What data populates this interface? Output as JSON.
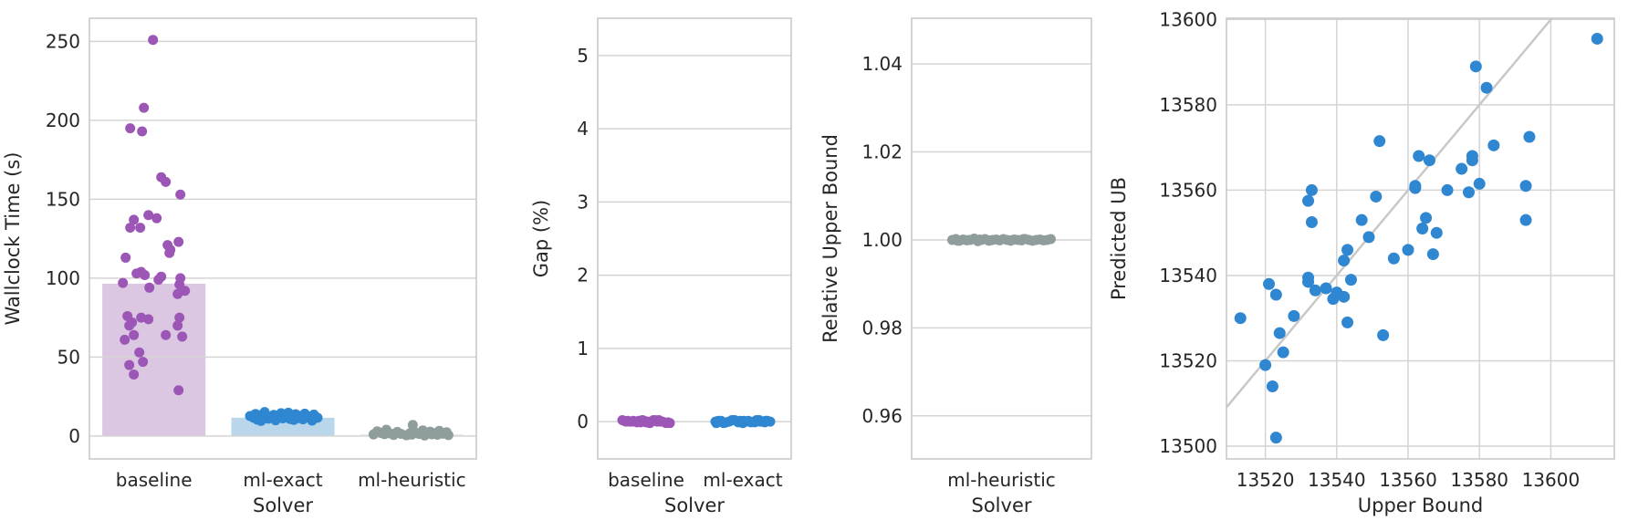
{
  "colors": {
    "purple_dot": "#9c57b6",
    "blue_dot": "#2f86d1",
    "gray_dot": "#8f9e9c",
    "purple_bar": "#dcc7e2",
    "blue_bar": "#b9d6eb",
    "gray_bar": "#e9ecec",
    "gridline": "#d4d4d4",
    "spine": "#c9c9c9",
    "identity_line": "#c8c8c8",
    "text": "#262626",
    "background": "#ffffff"
  },
  "chart_data": [
    {
      "id": "wallclock",
      "type": "bar+strip",
      "title": "",
      "xlabel": "Solver",
      "ylabel": "Wallclock Time (s)",
      "categories": [
        "baseline",
        "ml-exact",
        "ml-heuristic"
      ],
      "bar_values": [
        96.5,
        11.6,
        1.2
      ],
      "bar_colors": [
        "#dcc7e2",
        "#b9d6eb",
        "#e9ecec"
      ],
      "dot_colors": [
        "#9c57b6",
        "#2f86d1",
        "#8f9e9c"
      ],
      "yticks": [
        0,
        50,
        100,
        150,
        200,
        250
      ],
      "ytick_labels": [
        "0",
        "50",
        "100",
        "150",
        "200",
        "250"
      ],
      "ylim": [
        -14.5,
        264.7
      ],
      "grid": "horizontal",
      "series": [
        {
          "category": "baseline",
          "values": [
            251,
            208,
            195,
            193,
            164,
            161,
            153,
            140,
            138,
            137,
            132,
            132,
            123,
            121,
            118,
            116,
            113,
            104,
            103,
            102,
            101,
            100,
            99,
            97,
            96,
            94,
            92,
            90,
            76,
            75,
            75,
            74,
            72,
            70,
            70,
            64,
            64,
            63,
            61,
            53,
            47,
            45,
            39,
            29
          ],
          "jitter": [
            -1,
            -11,
            -26,
            -13,
            8,
            13,
            29,
            -6,
            3,
            -22,
            -26,
            -15,
            27,
            15,
            18,
            17,
            -31,
            -14,
            -19,
            -10,
            8,
            29,
            5,
            -34,
            28,
            -5,
            34,
            26,
            -29,
            -14,
            28,
            -6,
            -24,
            -27,
            26,
            13,
            -22,
            31,
            -32,
            -16,
            -12,
            -27,
            -22,
            27
          ]
        },
        {
          "category": "ml-exact",
          "values": [
            15.2,
            14.8,
            14.5,
            14.2,
            14.0,
            13.8,
            13.6,
            13.4,
            13.2,
            13.0,
            12.8,
            12.7,
            12.5,
            12.4,
            12.2,
            12.0,
            11.9,
            11.8,
            11.6,
            11.5,
            11.3,
            11.2,
            11.0,
            10.8,
            10.6,
            10.4,
            10.2,
            10.0,
            9.8,
            9.6,
            13.9,
            12.1
          ],
          "jitter": [
            -20,
            6,
            -2,
            24,
            -30,
            14,
            34,
            -10,
            2,
            -26,
            20,
            -36,
            10,
            30,
            -14,
            -6,
            26,
            -22,
            38,
            -32,
            16,
            0,
            -16,
            8,
            22,
            -28,
            12,
            -8,
            32,
            -24,
            4,
            18
          ]
        },
        {
          "category": "ml-heuristic",
          "values": [
            7.0,
            4.0,
            3.6,
            3.3,
            3.0,
            2.8,
            2.6,
            2.4,
            2.2,
            2.0,
            1.9,
            1.8,
            1.7,
            1.6,
            1.5,
            1.4,
            1.3,
            1.2,
            1.1,
            1.0,
            0.9,
            0.8,
            0.7,
            0.6,
            0.5,
            0.3
          ],
          "jitter": [
            1,
            -28,
            12,
            30,
            -38,
            20,
            -16,
            38,
            4,
            -34,
            26,
            -2,
            -24,
            16,
            34,
            -12,
            8,
            -30,
            22,
            -42,
            0,
            28,
            -20,
            40,
            -6,
            14
          ]
        }
      ]
    },
    {
      "id": "gap",
      "type": "strip",
      "title": "",
      "xlabel": "Solver",
      "ylabel": "Gap (%)",
      "categories": [
        "baseline",
        "ml-exact"
      ],
      "dot_colors": [
        "#9c57b6",
        "#2f86d1"
      ],
      "yticks": [
        0,
        1,
        2,
        3,
        4,
        5
      ],
      "ytick_labels": [
        "0",
        "1",
        "2",
        "3",
        "4",
        "5"
      ],
      "ylim": [
        -0.51,
        5.51
      ],
      "grid": "horizontal",
      "series": [
        {
          "category": "baseline",
          "values": [
            0.02,
            0.0,
            -0.01,
            0.01,
            0.0,
            0.02,
            -0.02,
            0.0,
            0.01,
            -0.01,
            0.0,
            0.02,
            0.0,
            -0.02,
            0.01,
            0.0,
            0.01,
            -0.01,
            0.02,
            0.0,
            -0.01,
            0.01,
            0.0,
            0.02,
            -0.02,
            0.0
          ],
          "jitter": [
            -26,
            -18,
            -10,
            -2,
            6,
            14,
            22,
            -22,
            -14,
            -6,
            2,
            10,
            18,
            26,
            -24,
            -16,
            -8,
            0,
            8,
            16,
            24,
            -20,
            -12,
            -4,
            4,
            12
          ]
        },
        {
          "category": "ml-exact",
          "values": [
            0.0,
            0.01,
            -0.01,
            0.02,
            0.0,
            -0.02,
            0.01,
            0.0,
            0.02,
            -0.01,
            0.0,
            0.01,
            -0.02,
            0.0,
            0.02,
            0.01,
            0.0,
            -0.01,
            0.02,
            0.0,
            0.01,
            -0.02,
            0.0,
            0.02,
            -0.01,
            0.01,
            0.0,
            -0.01,
            0.0,
            0.01
          ],
          "jitter": [
            -30,
            -24,
            -18,
            -12,
            -6,
            0,
            6,
            12,
            18,
            24,
            30,
            -27,
            -21,
            -15,
            -9,
            -3,
            3,
            9,
            15,
            21,
            27,
            -29,
            -23,
            -11,
            -5,
            1,
            7,
            13,
            19,
            25
          ]
        }
      ]
    },
    {
      "id": "relative-upper-bound",
      "type": "strip",
      "title": "",
      "xlabel": "Solver",
      "ylabel": "Relative Upper Bound",
      "categories": [
        "ml-heuristic"
      ],
      "dot_colors": [
        "#8f9e9c"
      ],
      "yticks": [
        0.96,
        0.98,
        1.0,
        1.02,
        1.04
      ],
      "ytick_labels": [
        "0.96",
        "0.98",
        "1.00",
        "1.02",
        "1.04"
      ],
      "ylim": [
        0.9502,
        1.0504
      ],
      "grid": "horizontal",
      "series": [
        {
          "category": "ml-heuristic",
          "values": [
            1.0,
            1.0002,
            0.9998,
            1.0001,
            0.9999,
            1.0,
            1.0003,
            0.9997,
            1.0,
            1.0002,
            0.9998,
            1.0,
            1.0001,
            0.9999,
            1.0002,
            1.0,
            0.9998,
            1.0001,
            1.0,
            0.9999,
            1.0002,
            1.0,
            0.9998,
            1.0,
            1.0001,
            0.9999,
            1.0,
            1.0002,
            0.9998,
            1.0,
            1.0001,
            0.9999,
            1.0,
            1.0002
          ],
          "jitter": [
            -54,
            -50,
            -46,
            -42,
            -38,
            -34,
            -30,
            -26,
            -22,
            -18,
            -14,
            -10,
            -6,
            -2,
            2,
            6,
            10,
            14,
            18,
            22,
            26,
            30,
            34,
            38,
            42,
            46,
            50,
            54,
            -48,
            -36,
            -24,
            -12,
            12,
            24
          ]
        }
      ]
    },
    {
      "id": "predicted-vs-upper-bound",
      "type": "scatter",
      "title": "",
      "xlabel": "Upper Bound",
      "ylabel": "Predicted UB",
      "dot_color": "#2f86d1",
      "identity_line": true,
      "identity_line_color": "#c8c8c8",
      "xticks": [
        13520,
        13540,
        13560,
        13580,
        13600
      ],
      "xtick_labels": [
        "13520",
        "13540",
        "13560",
        "13580",
        "13600"
      ],
      "yticks": [
        13500,
        13520,
        13540,
        13560,
        13580,
        13600
      ],
      "ytick_labels": [
        "13500",
        "13520",
        "13540",
        "13560",
        "13580",
        "13600"
      ],
      "xlim": [
        13509.1,
        13617.8
      ],
      "ylim": [
        13497.0,
        13600.3
      ],
      "grid": "both",
      "x": [
        13513,
        13520,
        13521,
        13522,
        13523,
        13523,
        13524,
        13525,
        13528,
        13532,
        13532,
        13532,
        13533,
        13533,
        13534,
        13537,
        13539,
        13540,
        13542,
        13542,
        13543,
        13543,
        13544,
        13547,
        13549,
        13551,
        13552,
        13553,
        13556,
        13560,
        13562,
        13562,
        13563,
        13564,
        13565,
        13566,
        13567,
        13568,
        13571,
        13575,
        13577,
        13578,
        13578,
        13579,
        13580,
        13582,
        13584,
        13593,
        13593,
        13594,
        13613
      ],
      "y": [
        13530,
        13519,
        13538,
        13514,
        13502,
        13535.5,
        13526.5,
        13522,
        13530.5,
        13539.5,
        13538.5,
        13557.5,
        13560,
        13552.5,
        13536.5,
        13537,
        13534.5,
        13536,
        13543.5,
        13535,
        13546,
        13529,
        13539,
        13553,
        13549,
        13558.5,
        13571.5,
        13526,
        13544,
        13546,
        13560.5,
        13561,
        13568,
        13551,
        13553.5,
        13567,
        13545,
        13550,
        13560,
        13565,
        13559.5,
        13568,
        13567,
        13589,
        13561.5,
        13584,
        13570.5,
        13561,
        13553,
        13572.5,
        13595.5
      ]
    }
  ]
}
